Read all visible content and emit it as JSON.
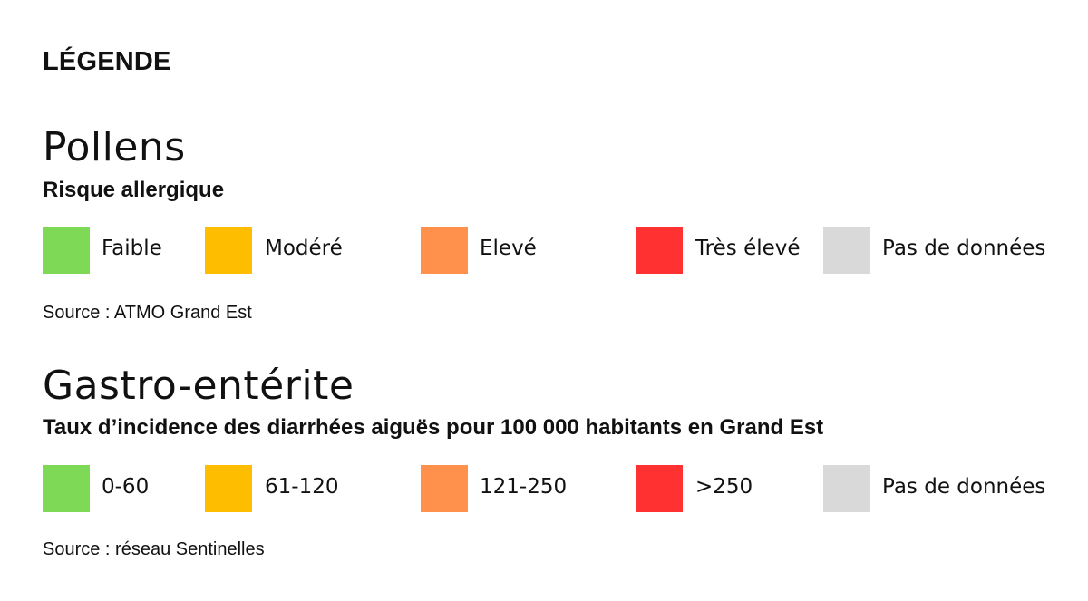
{
  "legend_title": "LÉGENDE",
  "pollens": {
    "title": "Pollens",
    "subtitle": "Risque allergique",
    "items": [
      {
        "label": "Faible",
        "color": "#7ed957"
      },
      {
        "label": "Modéré",
        "color": "#ffbd00"
      },
      {
        "label": "Elevé",
        "color": "#ff914d"
      },
      {
        "label": "Très élevé",
        "color": "#ff3131"
      },
      {
        "label": "Pas de données",
        "color": "#d9d9d9"
      }
    ],
    "source": "Source : ATMO Grand Est"
  },
  "gastro": {
    "title": "Gastro-entérite",
    "subtitle": "Taux d’incidence des diarrhées aiguës pour 100 000 habitants en Grand Est",
    "items": [
      {
        "label": "0-60",
        "color": "#7ed957"
      },
      {
        "label": "61-120",
        "color": "#ffbd00"
      },
      {
        "label": "121-250",
        "color": "#ff914d"
      },
      {
        "label": ">250",
        "color": "#ff3131"
      },
      {
        "label": "Pas de données",
        "color": "#d9d9d9"
      }
    ],
    "source": "Source : réseau Sentinelles"
  }
}
